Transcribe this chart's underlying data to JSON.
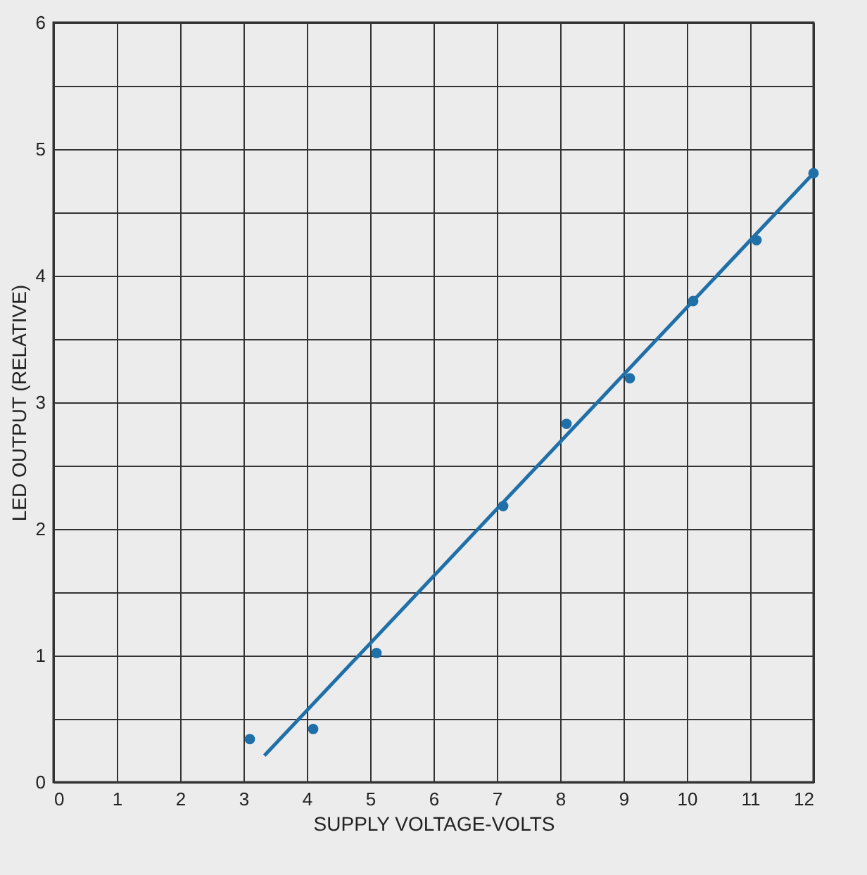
{
  "chart_data": {
    "type": "scatter",
    "xlabel": "SUPPLY VOLTAGE-VOLTS",
    "ylabel": "LED OUTPUT  (RELATIVE)",
    "x": [
      3.1,
      4.1,
      5.1,
      7.1,
      8.1,
      9.1,
      10.1,
      11.1,
      12
    ],
    "series": [
      {
        "color": "#1f6fa8",
        "values": [
          0.34,
          0.42,
          1.02,
          2.18,
          2.83,
          3.19,
          3.8,
          4.28,
          4.81
        ]
      },
      {
        "type": "line",
        "color": "#1f6fa8",
        "x": [
          3.33,
          12
        ],
        "values": [
          0.21,
          4.81
        ],
        "marker": "none"
      }
    ],
    "xlim": [
      0,
      12
    ],
    "ylim": [
      0,
      6
    ],
    "xticks": [
      0,
      1,
      2,
      3,
      4,
      5,
      6,
      7,
      8,
      9,
      10,
      11,
      12
    ],
    "yticks": [
      0,
      {
        "value": 0.5,
        "label": null
      },
      1,
      {
        "value": 1.5,
        "label": null
      },
      2,
      {
        "value": 2.5,
        "label": null
      },
      3,
      {
        "value": 3.5,
        "label": null
      },
      4,
      {
        "value": 4.5,
        "label": null
      },
      5,
      {
        "value": 5.5,
        "label": null
      },
      6
    ],
    "grid": true,
    "marker": "circle",
    "line_style": "solid"
  }
}
